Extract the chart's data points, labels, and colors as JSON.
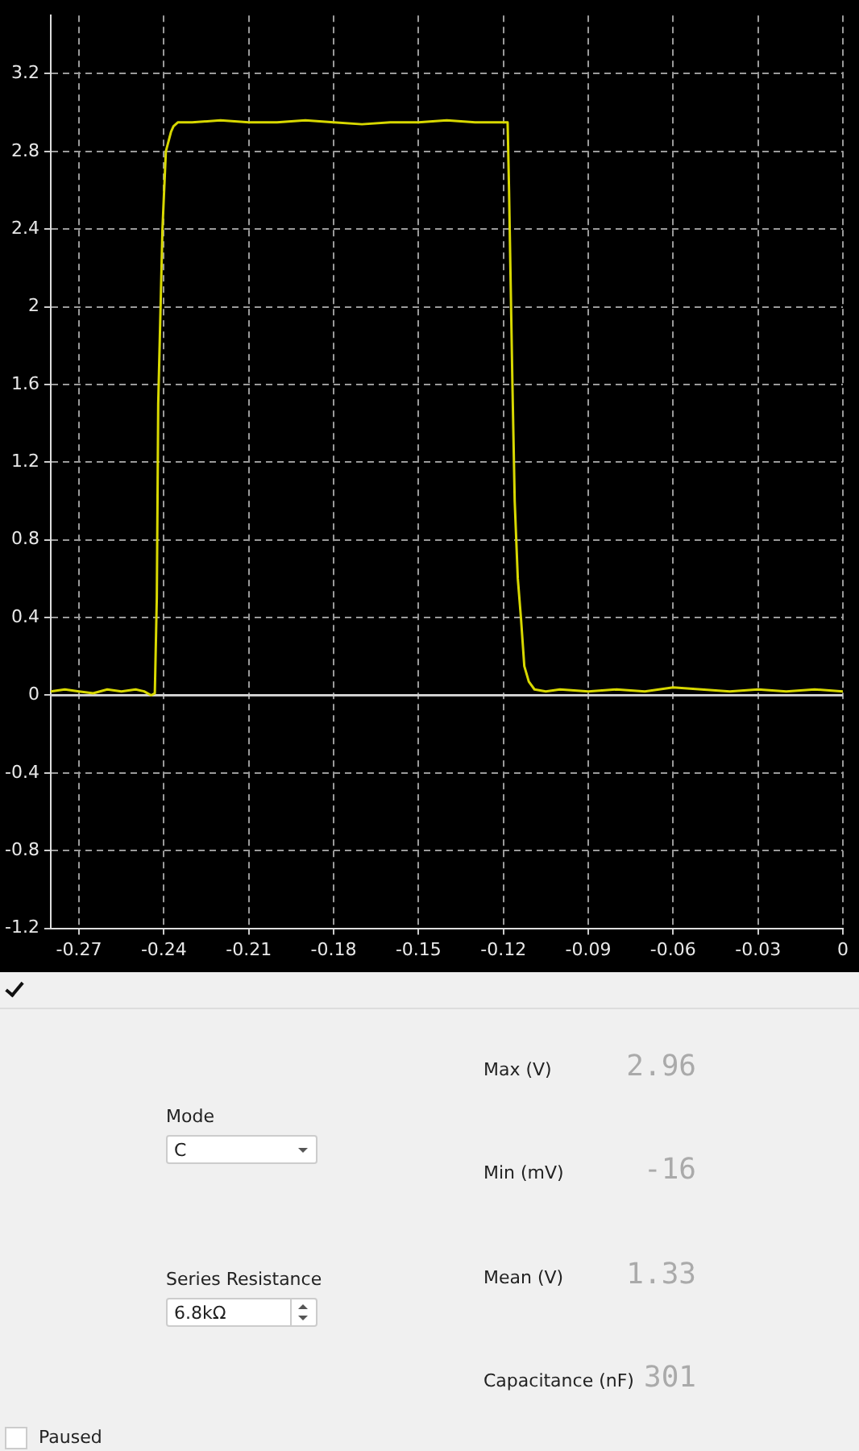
{
  "chart_data": [
    {
      "type": "line",
      "x": [
        -0.28,
        -0.275,
        -0.27,
        -0.265,
        -0.26,
        -0.255,
        -0.25,
        -0.247,
        -0.2445,
        -0.2432,
        -0.2425,
        -0.242,
        -0.2405,
        -0.2393,
        -0.2375,
        -0.2366,
        -0.235,
        -0.23,
        -0.22,
        -0.21,
        -0.2,
        -0.19,
        -0.18,
        -0.17,
        -0.16,
        -0.15,
        -0.14,
        -0.13,
        -0.122,
        -0.1185,
        -0.118,
        -0.1168,
        -0.116,
        -0.1149,
        -0.1138,
        -0.1126,
        -0.111,
        -0.109,
        -0.105,
        -0.1,
        -0.09,
        -0.08,
        -0.07,
        -0.06,
        -0.05,
        -0.04,
        -0.03,
        -0.02,
        -0.01,
        0
      ],
      "series": [
        {
          "color": "#d8d800",
          "values": [
            0.02,
            0.03,
            0.02,
            0.01,
            0.03,
            0.02,
            0.03,
            0.02,
            0.0,
            0.01,
            0.5,
            1.5,
            2.4,
            2.8,
            2.9,
            2.93,
            2.95,
            2.95,
            2.96,
            2.95,
            2.95,
            2.96,
            2.95,
            2.94,
            2.95,
            2.95,
            2.96,
            2.95,
            2.95,
            2.95,
            2.6,
            1.6,
            1.0,
            0.6,
            0.4,
            0.15,
            0.07,
            0.03,
            0.02,
            0.03,
            0.02,
            0.03,
            0.02,
            0.04,
            0.03,
            0.02,
            0.03,
            0.02,
            0.03,
            0.02
          ]
        }
      ],
      "xlim": [
        -0.28,
        0
      ],
      "ylim": [
        -1.2,
        3.5
      ],
      "xticks": [
        -0.27,
        -0.24,
        -0.21,
        -0.18,
        -0.15,
        -0.12,
        -0.09,
        -0.06,
        -0.03,
        0
      ],
      "yticks": [
        -1.2,
        -0.8,
        -0.4,
        0,
        0.4,
        0.8,
        1.2,
        1.6,
        2,
        2.4,
        2.8,
        3.2
      ],
      "grid": true,
      "marker": "none",
      "line_style": "solid",
      "ref_lines": [
        {
          "axis": "y",
          "value": 0,
          "color": "#d0d0d0"
        }
      ]
    },
    {
      "type": "other",
      "annotations": [
        "Mode",
        "C",
        "Series Resistance",
        "6.8kΩ",
        "Max (V)",
        "2.96",
        "Min (mV)",
        "-16",
        "Mean (V)",
        "1.33",
        "Capacitance (nF)",
        "301",
        "Paused"
      ]
    }
  ]
}
